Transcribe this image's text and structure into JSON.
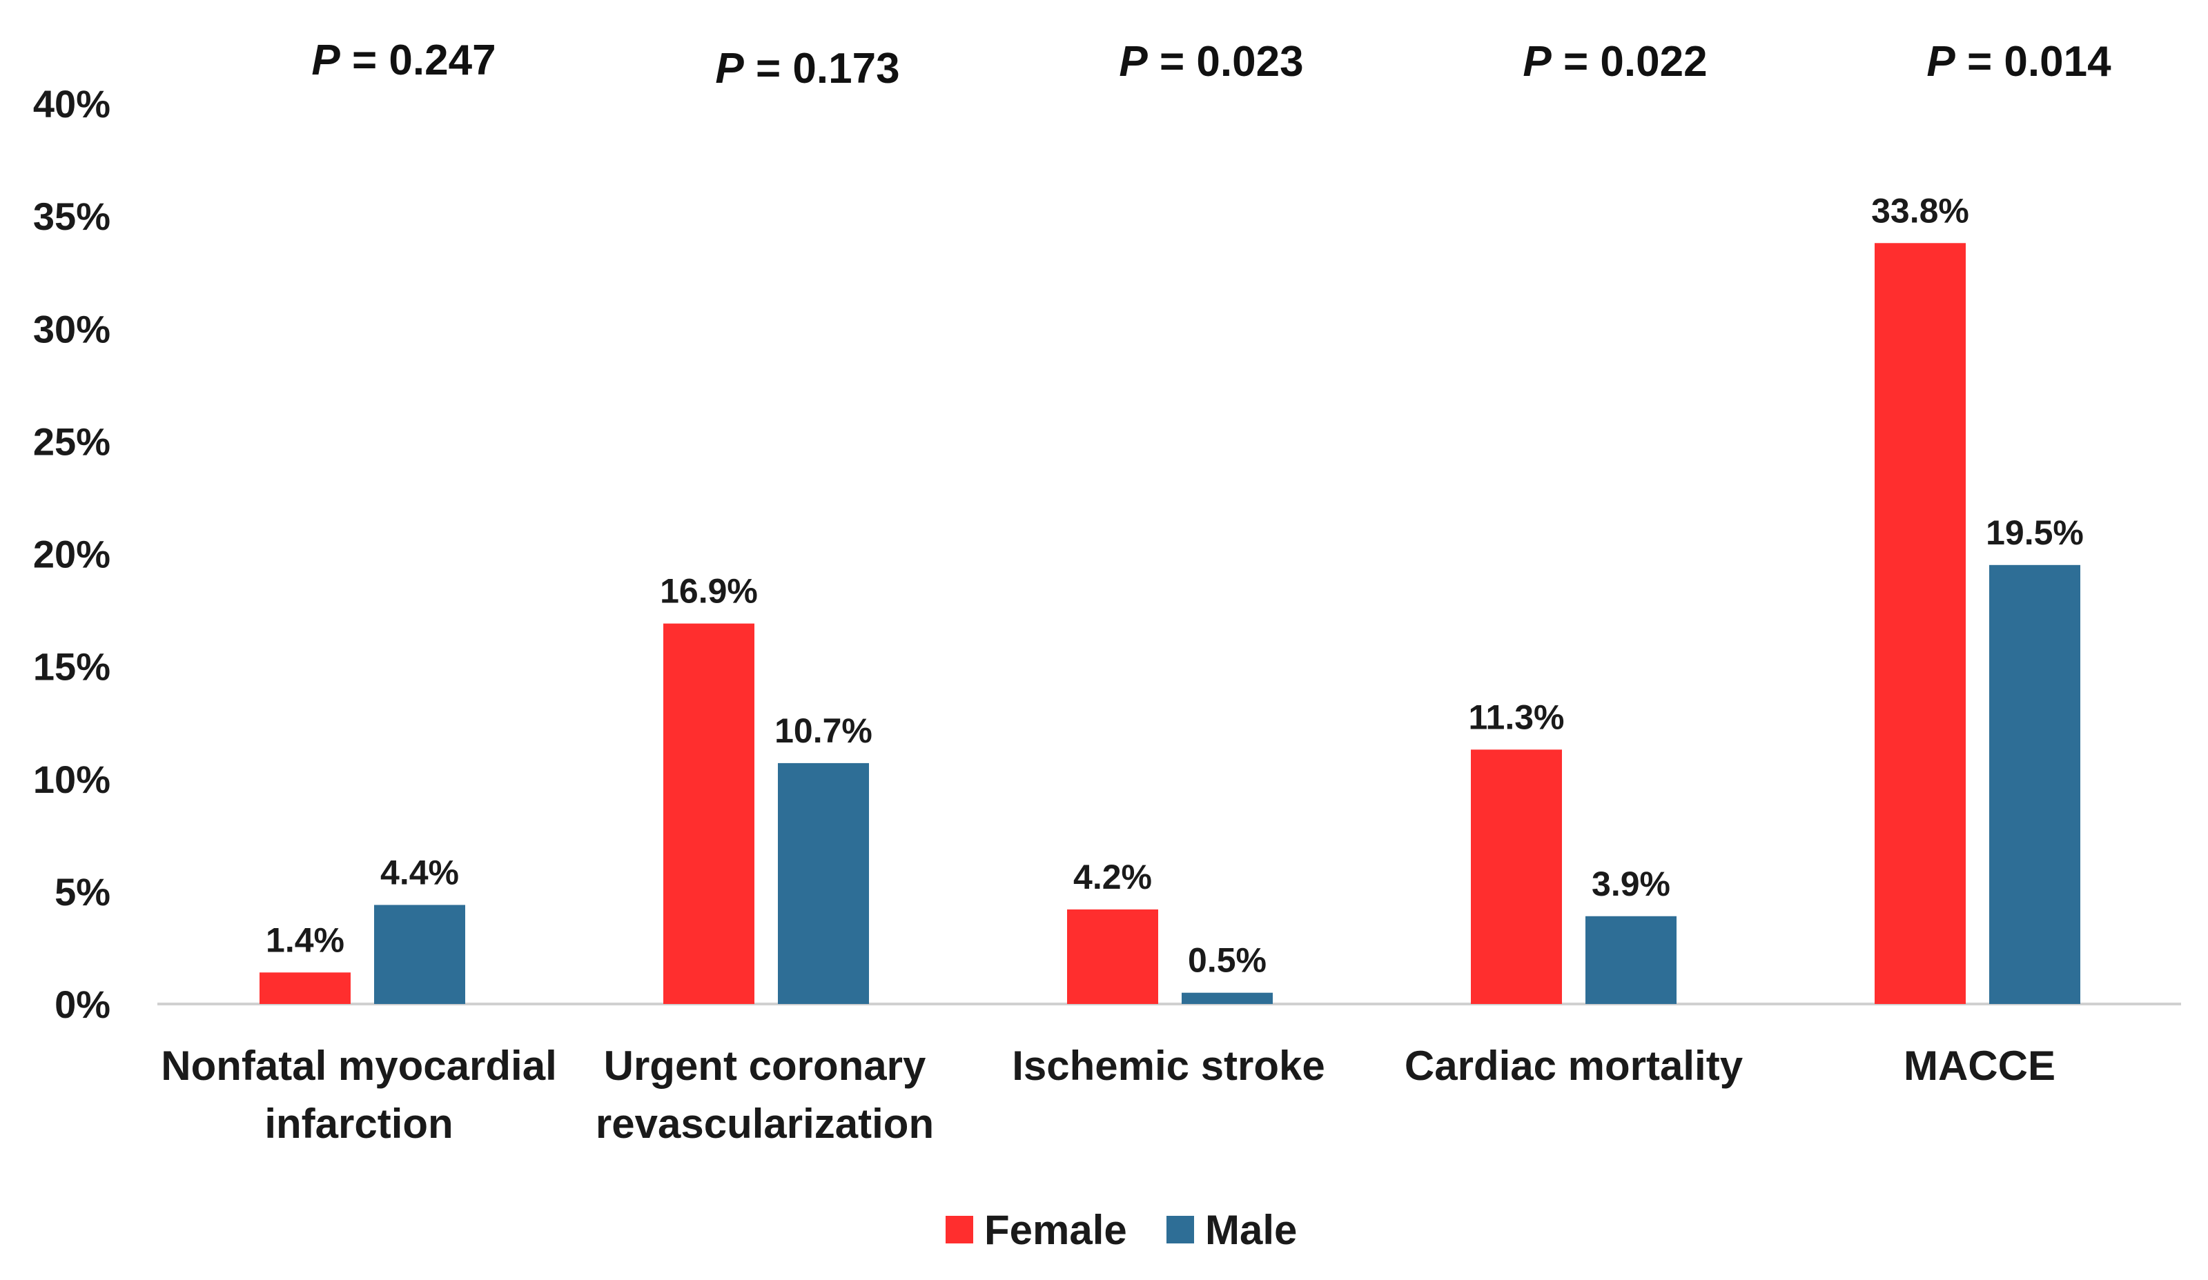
{
  "chart_data": {
    "type": "bar",
    "title": "",
    "xlabel": "",
    "ylabel": "",
    "ylim": [
      0,
      40
    ],
    "yticks": [
      "0%",
      "5%",
      "10%",
      "15%",
      "20%",
      "25%",
      "30%",
      "35%",
      "40%"
    ],
    "categories": [
      [
        "Nonfatal myocardial",
        "infarction"
      ],
      [
        "Urgent coronary",
        "revascularization"
      ],
      [
        "Ischemic stroke"
      ],
      [
        "Cardiac mortality"
      ],
      [
        "MACCE"
      ]
    ],
    "p_values": [
      {
        "prefix": "P",
        "text": " = 0.247"
      },
      {
        "prefix": "P",
        "text": " = 0.173"
      },
      {
        "prefix": "P",
        "text": " = 0.023"
      },
      {
        "prefix": "P",
        "text": " = 0.022"
      },
      {
        "prefix": "P",
        "text": " = 0.014"
      }
    ],
    "series": [
      {
        "name": "Female",
        "color": "#ff2e2e",
        "values": [
          1.4,
          16.9,
          4.2,
          11.3,
          33.8
        ],
        "labels": [
          "1.4%",
          "16.9%",
          "4.2%",
          "11.3%",
          "33.8%"
        ]
      },
      {
        "name": "Male",
        "color": "#2e6e96",
        "values": [
          4.4,
          10.7,
          0.5,
          3.9,
          19.5
        ],
        "labels": [
          "4.4%",
          "10.7%",
          "0.5%",
          "3.9%",
          "19.5%"
        ]
      }
    ],
    "legend_position": "bottom-center",
    "grid": false
  }
}
